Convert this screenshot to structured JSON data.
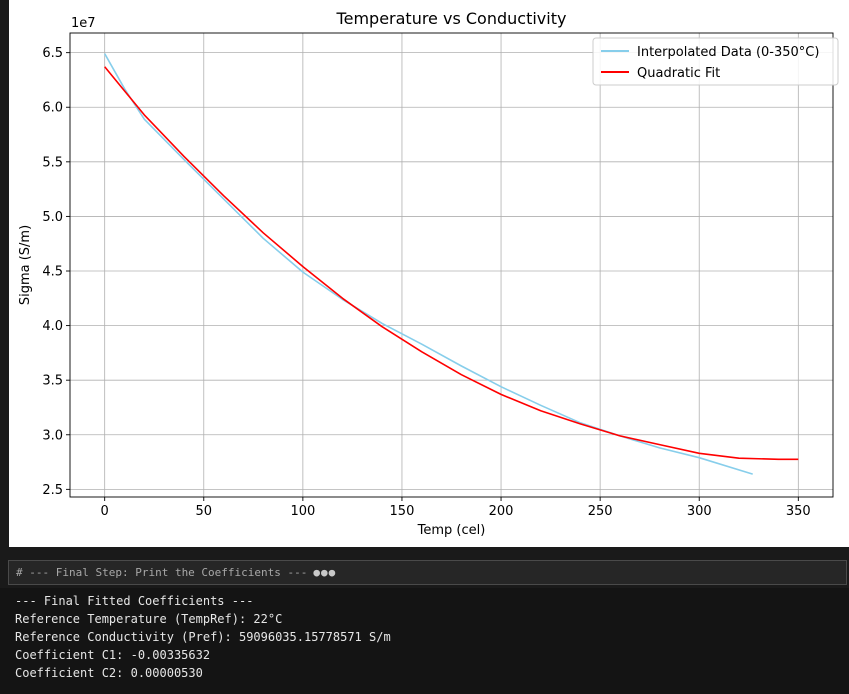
{
  "chart_data": {
    "type": "line",
    "title": "Temperature vs Conductivity",
    "xlabel": "Temp (cel)",
    "ylabel": "Sigma (S/m)",
    "y_offset_label": "1e7",
    "xlim": [
      -17.5,
      367.5
    ],
    "ylim": [
      24300000.0,
      66800000.0
    ],
    "xticks": [
      0,
      50,
      100,
      150,
      200,
      250,
      300,
      350
    ],
    "yticks": [
      25000000.0,
      30000000.0,
      35000000.0,
      40000000.0,
      45000000.0,
      50000000.0,
      55000000.0,
      60000000.0,
      65000000.0
    ],
    "ytick_labels": [
      "2.5",
      "3.0",
      "3.5",
      "4.0",
      "4.5",
      "5.0",
      "5.5",
      "6.0",
      "6.5"
    ],
    "grid": true,
    "legend_position": "top-right",
    "series": [
      {
        "name": "Interpolated Data (0-350°C)",
        "color": "#87ceeb",
        "x": [
          0,
          10,
          20,
          40,
          60,
          80,
          100,
          120,
          140,
          160,
          180,
          200,
          220,
          240,
          260,
          280,
          300,
          327
        ],
        "y": [
          64900000,
          61700000,
          58900000,
          55200000,
          51600000,
          48000000,
          44900000,
          42400000,
          40200000,
          38300000,
          36300000,
          34400000,
          32700000,
          31100000,
          29900000,
          28800000,
          27900000,
          26400000
        ]
      },
      {
        "name": "Quadratic Fit",
        "color": "#ff0000",
        "x": [
          0,
          10,
          20,
          40,
          60,
          80,
          100,
          120,
          140,
          160,
          180,
          200,
          220,
          240,
          260,
          280,
          300,
          320,
          340,
          350
        ],
        "y": [
          63700000,
          61500000,
          59300000,
          55500000,
          51900000,
          48500000,
          45400000,
          42500000,
          39900000,
          37600000,
          35500000,
          33700000,
          32200000,
          31000000,
          29900000,
          29100000,
          28300000,
          27850000,
          27750000,
          27750000
        ]
      }
    ]
  },
  "code_cell": {
    "text": "# --- Final Step: Print the Coefficients ---",
    "dots": "●●●"
  },
  "output": {
    "lines": [
      "--- Final Fitted Coefficients ---",
      "Reference Temperature (TempRef): 22°C",
      "Reference Conductivity (Pref): 59096035.15778571 S/m",
      "Coefficient C1: -0.00335632",
      "Coefficient C2: 0.00000530"
    ]
  }
}
